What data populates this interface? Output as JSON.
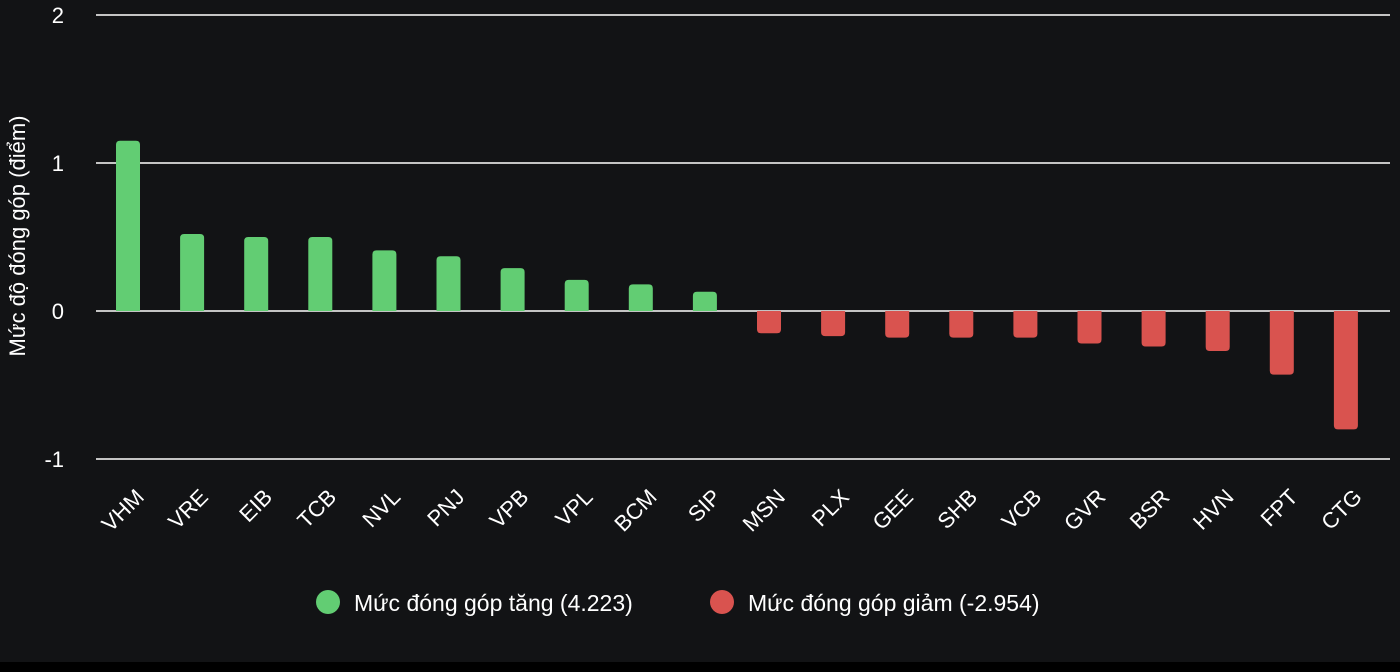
{
  "chart_data": {
    "type": "bar",
    "title": "",
    "xlabel": "",
    "ylabel": "Mức độ đóng góp (điểm)",
    "ylim": [
      -1,
      2
    ],
    "yticks": [
      2,
      1,
      0,
      -1
    ],
    "grid": true,
    "legend_position": "bottom",
    "categories": [
      "VHM",
      "VRE",
      "EIB",
      "TCB",
      "NVL",
      "PNJ",
      "VPB",
      "VPL",
      "BCM",
      "SIP",
      "MSN",
      "PLX",
      "GEE",
      "SHB",
      "VCB",
      "GVR",
      "BSR",
      "HVN",
      "FPT",
      "CTG"
    ],
    "values": [
      1.15,
      0.52,
      0.5,
      0.5,
      0.41,
      0.37,
      0.29,
      0.21,
      0.18,
      0.13,
      -0.15,
      -0.17,
      -0.18,
      -0.18,
      -0.18,
      -0.22,
      -0.24,
      -0.27,
      -0.43,
      -0.8
    ],
    "series": [
      {
        "name": "Mức đóng góp tăng (4.223)",
        "color": "#62cd73"
      },
      {
        "name": "Mức đóng góp giảm (-2.954)",
        "color": "#d9534f"
      }
    ],
    "colors": {
      "background": "#121315",
      "gridline": "#ffffff",
      "text": "#ffffff",
      "positive": "#62cd73",
      "negative": "#d9534f"
    }
  }
}
